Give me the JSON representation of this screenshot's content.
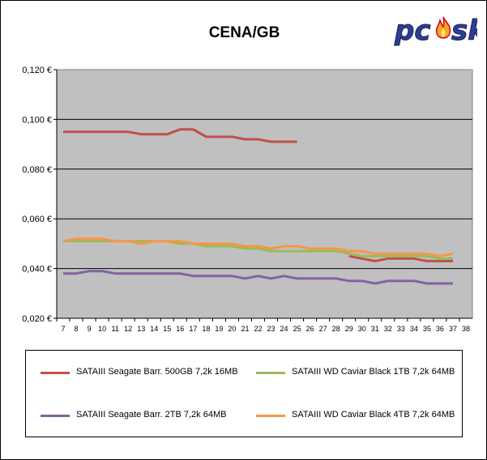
{
  "chart_data": {
    "type": "line",
    "title": "CENA/GB",
    "xlabel": "",
    "ylabel": "",
    "x": [
      7,
      8,
      9,
      10,
      11,
      12,
      13,
      14,
      15,
      16,
      17,
      18,
      19,
      20,
      21,
      22,
      23,
      24,
      25,
      26,
      27,
      28,
      29,
      30,
      31,
      32,
      33,
      34,
      35,
      36,
      37,
      38
    ],
    "y_ticks": [
      "0,020 €",
      "0,040 €",
      "0,060 €",
      "0,080 €",
      "0,100 €",
      "0,120 €"
    ],
    "ylim": [
      0.02,
      0.12
    ],
    "grid": "horizontal",
    "plot_background": "#C0C0C0",
    "legend_position": "bottom",
    "series": [
      {
        "name": "SATAIII Seagate Barr. 500GB 7,2k 16MB",
        "color": "#C0504D",
        "x": [
          7,
          8,
          9,
          10,
          11,
          12,
          13,
          14,
          15,
          16,
          17,
          18,
          19,
          20,
          21,
          22,
          23,
          24,
          25,
          29,
          30,
          31,
          32,
          33,
          34,
          35,
          36,
          37
        ],
        "values": [
          0.095,
          0.095,
          0.095,
          0.095,
          0.095,
          0.095,
          0.094,
          0.094,
          0.094,
          0.096,
          0.096,
          0.093,
          0.093,
          0.093,
          0.092,
          0.092,
          0.091,
          0.091,
          0.091,
          0.045,
          0.044,
          0.043,
          0.044,
          0.044,
          0.044,
          0.043,
          0.043,
          0.043
        ],
        "segments": [
          [
            0,
            18
          ],
          [
            19,
            27
          ]
        ]
      },
      {
        "name": "SATAIII WD Caviar Black 1TB 7,2k 64MB",
        "color": "#9BBB59",
        "x": [
          7,
          8,
          9,
          10,
          11,
          12,
          13,
          14,
          15,
          16,
          17,
          18,
          19,
          20,
          21,
          22,
          23,
          24,
          25,
          26,
          27,
          28,
          29,
          30,
          31,
          32,
          33,
          34,
          35,
          36,
          37
        ],
        "values": [
          0.051,
          0.051,
          0.051,
          0.051,
          0.051,
          0.051,
          0.051,
          0.051,
          0.051,
          0.05,
          0.05,
          0.049,
          0.049,
          0.049,
          0.048,
          0.048,
          0.047,
          0.047,
          0.047,
          0.047,
          0.047,
          0.047,
          0.046,
          0.045,
          0.045,
          0.045,
          0.045,
          0.045,
          0.045,
          0.044,
          0.044
        ]
      },
      {
        "name": "SATAIII Seagate Barr. 2TB 7,2k 64MB",
        "color": "#8064A2",
        "x": [
          7,
          8,
          9,
          10,
          11,
          12,
          13,
          14,
          15,
          16,
          17,
          18,
          19,
          20,
          21,
          22,
          23,
          24,
          25,
          26,
          27,
          28,
          29,
          30,
          31,
          32,
          33,
          34,
          35,
          36,
          37
        ],
        "values": [
          0.038,
          0.038,
          0.039,
          0.039,
          0.038,
          0.038,
          0.038,
          0.038,
          0.038,
          0.038,
          0.037,
          0.037,
          0.037,
          0.037,
          0.036,
          0.037,
          0.036,
          0.037,
          0.036,
          0.036,
          0.036,
          0.036,
          0.035,
          0.035,
          0.034,
          0.035,
          0.035,
          0.035,
          0.034,
          0.034,
          0.034
        ]
      },
      {
        "name": "SATAIII WD Caviar Black 4TB 7,2k 64MB",
        "color": "#F79646",
        "x": [
          7,
          8,
          9,
          10,
          11,
          12,
          13,
          14,
          15,
          16,
          17,
          18,
          19,
          20,
          21,
          22,
          23,
          24,
          25,
          26,
          27,
          28,
          29,
          30,
          31,
          32,
          33,
          34,
          35,
          36,
          37
        ],
        "values": [
          0.051,
          0.052,
          0.052,
          0.052,
          0.051,
          0.051,
          0.05,
          0.051,
          0.051,
          0.051,
          0.05,
          0.05,
          0.05,
          0.05,
          0.049,
          0.049,
          0.048,
          0.049,
          0.049,
          0.048,
          0.048,
          0.048,
          0.047,
          0.047,
          0.046,
          0.046,
          0.046,
          0.046,
          0.046,
          0.045,
          0.046
        ]
      }
    ]
  },
  "logo": {
    "text": "pcsk"
  }
}
